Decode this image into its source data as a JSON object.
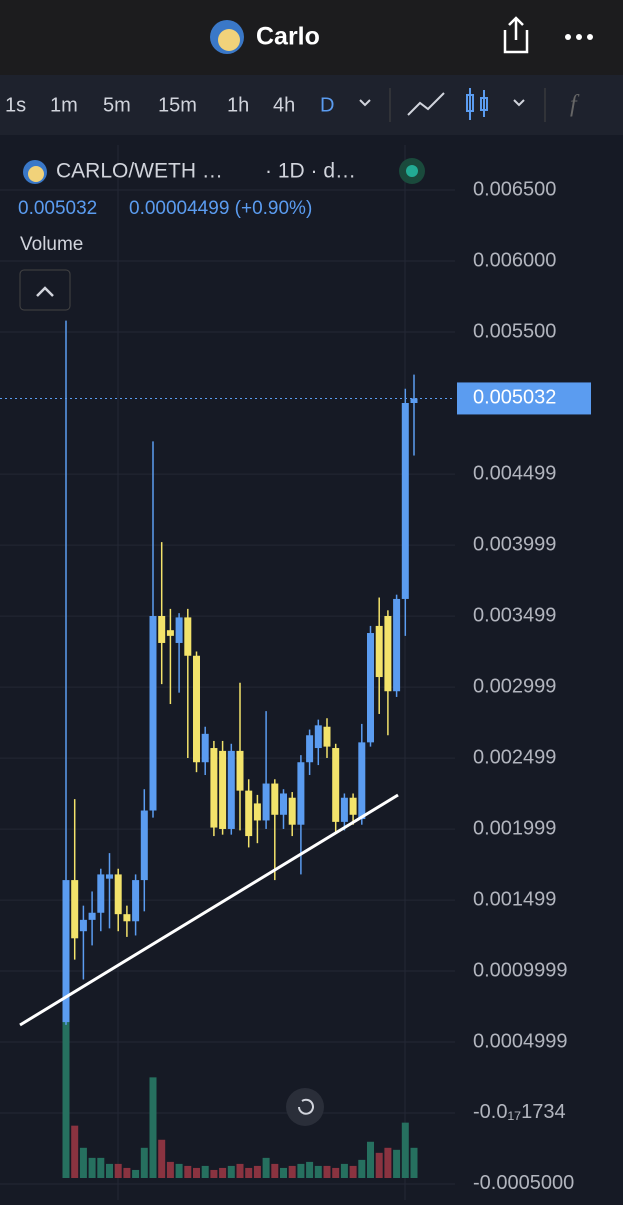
{
  "app": {
    "title": "Carlo",
    "timeframes": [
      "1s",
      "1m",
      "5m",
      "15m",
      "1h",
      "4h",
      "D"
    ],
    "symbol": "CARLO/WETH …",
    "interval": "· 1D · d…",
    "price": "0.005032",
    "change": "0.00004499 (+0.90%)",
    "volume_label": "Volume"
  },
  "chart_data": {
    "type": "candlestick",
    "open": [
      0.00064,
      0.00164,
      0.00128,
      0.00136,
      0.00141,
      0.00165,
      0.00168,
      0.0014,
      0.00135,
      0.00164,
      0.00213,
      0.0035,
      0.0034,
      0.00331,
      0.00349,
      0.00322,
      0.00247,
      0.00257,
      0.00255,
      0.002,
      0.00255,
      0.00227,
      0.00218,
      0.00206,
      0.00232,
      0.0021,
      0.00222,
      0.00203,
      0.00247,
      0.00257,
      0.00272,
      0.00257,
      0.00205,
      0.00222,
      0.00207,
      0.00261,
      0.00343,
      0.0035,
      0.00297,
      0.00362,
      0.005
    ],
    "high": [
      0.00558,
      0.00221,
      0.00146,
      0.00156,
      0.00172,
      0.00183,
      0.00172,
      0.00146,
      0.00168,
      0.00228,
      0.00473,
      0.00402,
      0.00355,
      0.00352,
      0.00355,
      0.00325,
      0.00272,
      0.00262,
      0.00262,
      0.0026,
      0.00303,
      0.00235,
      0.00224,
      0.00283,
      0.00235,
      0.00228,
      0.00226,
      0.00252,
      0.0027,
      0.00277,
      0.00278,
      0.0026,
      0.00225,
      0.00225,
      0.00274,
      0.00343,
      0.00363,
      0.00354,
      0.00365,
      0.0051,
      0.0052
    ],
    "low": [
      0.00062,
      0.00108,
      0.00094,
      0.00118,
      0.00128,
      0.0013,
      0.00128,
      0.00124,
      0.00125,
      0.00142,
      0.00208,
      0.00302,
      0.00288,
      0.00296,
      0.0025,
      0.0024,
      0.00238,
      0.00195,
      0.00196,
      0.00196,
      0.00199,
      0.00187,
      0.0019,
      0.002,
      0.00164,
      0.002,
      0.00195,
      0.00168,
      0.00238,
      0.00245,
      0.0025,
      0.00197,
      0.00199,
      0.00203,
      0.00203,
      0.00258,
      0.00281,
      0.00266,
      0.00293,
      0.00336,
      0.00463
    ],
    "close": [
      0.00164,
      0.00123,
      0.00136,
      0.00141,
      0.00168,
      0.00168,
      0.0014,
      0.00135,
      0.00164,
      0.00213,
      0.0035,
      0.00331,
      0.00336,
      0.00349,
      0.00322,
      0.00247,
      0.00267,
      0.00201,
      0.002,
      0.00255,
      0.00227,
      0.00195,
      0.00206,
      0.00232,
      0.0021,
      0.00225,
      0.00203,
      0.00247,
      0.00266,
      0.00273,
      0.00258,
      0.00205,
      0.00222,
      0.0021,
      0.00261,
      0.00338,
      0.00307,
      0.00297,
      0.00362,
      0.005,
      0.005032
    ],
    "volume": [
      155,
      52,
      30,
      20,
      20,
      14,
      14,
      10,
      8,
      30,
      100,
      38,
      16,
      14,
      12,
      10,
      12,
      8,
      10,
      12,
      14,
      10,
      12,
      20,
      14,
      10,
      12,
      14,
      16,
      12,
      12,
      10,
      14,
      12,
      18,
      36,
      25,
      30,
      28,
      55,
      30
    ],
    "up_color": "#5b9cf0",
    "down_color": "#f3e36b",
    "volume_up_color": "#26705f",
    "volume_down_color": "#8a3340",
    "ylim": [
      -0.000613,
      0.006817
    ],
    "yticks": [
      {
        "value": 0.0065,
        "label": "0.006500"
      },
      {
        "value": 0.006,
        "label": "0.006000"
      },
      {
        "value": 0.0055,
        "label": "0.005500"
      },
      0.004499,
      0.003999,
      0.003499,
      0.002999,
      0.002499,
      0.001999,
      0.001499,
      0.0009999,
      0.0004999,
      {
        "value": -1.734e-18,
        "label": "-0.0₁₇1734"
      },
      {
        "value": -0.0005,
        "label": "-0.0005000"
      }
    ],
    "last_price": 0.005032,
    "grid": true
  }
}
